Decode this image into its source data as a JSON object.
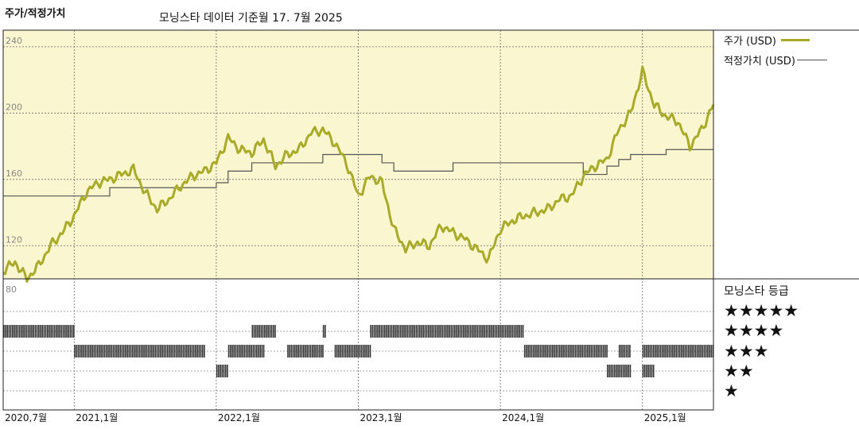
{
  "header": {
    "title": "주가/적정가치",
    "subtitle": "모닝스타 데이터 기준월 17. 7월 2025"
  },
  "legend": {
    "price_label": "주가 (USD)",
    "fair_value_label": "적정가치 (USD)",
    "rating_title": "모닝스타 등급"
  },
  "ratings_legend": [
    "★★★★★",
    "★★★★",
    "★★★",
    "★★",
    "★"
  ],
  "colors": {
    "price_line": "#a8aa28",
    "fair_value_line": "#555555",
    "plot_background": "#faf6cf",
    "rating_bar": "#333333"
  },
  "chart_data": {
    "type": "line",
    "title": "주가/적정가치",
    "subtitle": "모닝스타 데이터 기준월 17. 7월 2025",
    "x_ticks": [
      "2020,7월",
      "2021,1월",
      "2022,1월",
      "2023,1월",
      "2024,1월",
      "2025,1월"
    ],
    "x_range": [
      "2020-07",
      "2025-07"
    ],
    "y_ticks": [
      120,
      160,
      200,
      240
    ],
    "ylim": [
      100,
      250
    ],
    "rating_axis_label": "80",
    "grid": true,
    "series": [
      {
        "name": "주가 (USD)",
        "x": [
          "2020-07",
          "2020-08",
          "2020-09",
          "2020-10",
          "2020-11",
          "2020-12",
          "2021-01",
          "2021-02",
          "2021-03",
          "2021-04",
          "2021-05",
          "2021-06",
          "2021-07",
          "2021-08",
          "2021-09",
          "2021-10",
          "2021-11",
          "2021-12",
          "2022-01",
          "2022-02",
          "2022-03",
          "2022-04",
          "2022-05",
          "2022-06",
          "2022-07",
          "2022-08",
          "2022-09",
          "2022-10",
          "2022-11",
          "2022-12",
          "2023-01",
          "2023-02",
          "2023-03",
          "2023-04",
          "2023-05",
          "2023-06",
          "2023-07",
          "2023-08",
          "2023-09",
          "2023-10",
          "2023-11",
          "2023-12",
          "2024-01",
          "2024-02",
          "2024-03",
          "2024-04",
          "2024-05",
          "2024-06",
          "2024-07",
          "2024-08",
          "2024-09",
          "2024-10",
          "2024-11",
          "2024-12",
          "2025-01",
          "2025-02",
          "2025-03",
          "2025-04",
          "2025-05",
          "2025-06",
          "2025-07"
        ],
        "values": [
          105,
          110,
          100,
          108,
          120,
          128,
          138,
          152,
          158,
          160,
          163,
          166,
          152,
          142,
          148,
          156,
          162,
          165,
          170,
          185,
          178,
          176,
          184,
          168,
          175,
          178,
          188,
          190,
          182,
          170,
          150,
          162,
          158,
          130,
          118,
          122,
          120,
          132,
          128,
          124,
          118,
          112,
          130,
          135,
          138,
          140,
          142,
          148,
          150,
          162,
          168,
          172,
          190,
          200,
          225,
          205,
          198,
          195,
          180,
          190,
          205
        ],
        "color": "#a8aa28"
      },
      {
        "name": "적정가치 (USD)",
        "x": [
          "2020-07",
          "2021-01",
          "2021-04",
          "2021-07",
          "2021-10",
          "2022-01",
          "2022-02",
          "2022-04",
          "2022-07",
          "2022-10",
          "2023-01",
          "2023-03",
          "2023-04",
          "2023-06",
          "2023-09",
          "2024-01",
          "2024-04",
          "2024-07",
          "2024-08",
          "2024-09",
          "2024-10",
          "2024-11",
          "2024-12",
          "2025-01",
          "2025-03",
          "2025-07"
        ],
        "values": [
          150,
          150,
          155,
          155,
          155,
          158,
          165,
          170,
          170,
          175,
          175,
          170,
          165,
          165,
          170,
          170,
          170,
          170,
          163,
          163,
          168,
          172,
          175,
          175,
          178,
          178
        ],
        "color": "#555555"
      }
    ],
    "rating_history": {
      "5": [
        [
          "2020-07",
          "2021-01"
        ],
        [
          "2022-04",
          "2022-06"
        ],
        [
          "2022-10",
          "2022-10"
        ],
        [
          "2023-02",
          "2024-03"
        ]
      ],
      "4": [
        [
          "2021-01",
          "2021-12"
        ],
        [
          "2022-02",
          "2022-05"
        ],
        [
          "2022-07",
          "2022-10"
        ],
        [
          "2022-11",
          "2023-02"
        ],
        [
          "2024-03",
          "2024-10"
        ],
        [
          "2024-11",
          "2024-12"
        ],
        [
          "2025-01",
          "2025-07"
        ]
      ],
      "3": [
        [
          "2022-01",
          "2022-02"
        ],
        [
          "2024-10",
          "2024-12"
        ],
        [
          "2025-01",
          "2025-02"
        ]
      ],
      "2": [],
      "1": []
    }
  }
}
